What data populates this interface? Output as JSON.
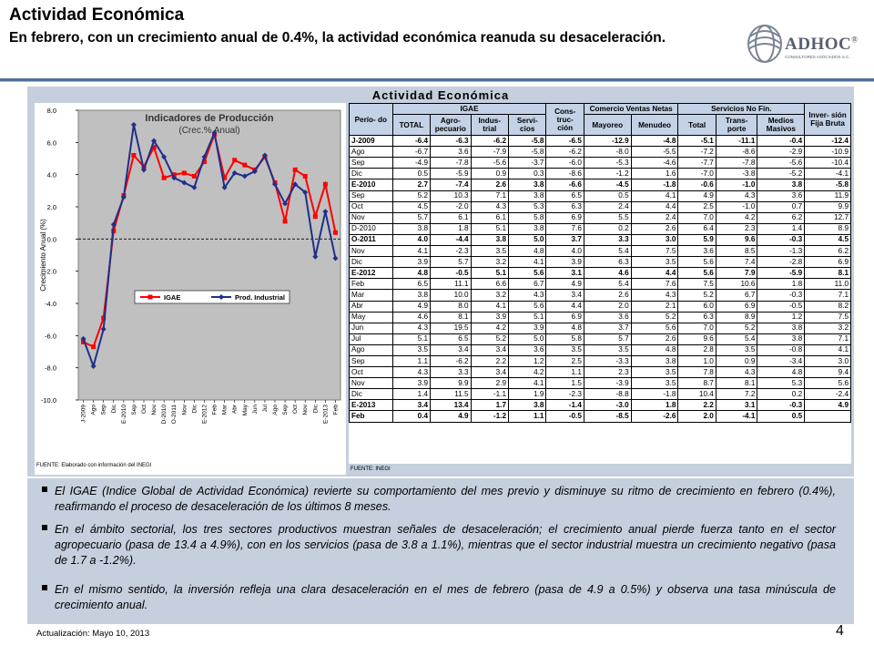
{
  "header": {
    "title": "Actividad Económica",
    "subtitle": "En febrero, con un crecimiento anual de 0.4%, la actividad económica reanuda su desaceleración."
  },
  "logo": {
    "word": "ADHOC",
    "registered": "®",
    "tagline": "CONSULTORES ASOCIADOS S.C."
  },
  "panel": {
    "title": "Actividad Económica"
  },
  "chart_data": {
    "type": "line",
    "title": "Indicadores de Producción",
    "subtitle": "(Crec.% Anual)",
    "ylabel": "Crecimiento Anual (%)",
    "ylim": [
      -10,
      8
    ],
    "yticks": [
      "8.0",
      "6.0",
      "4.0",
      "2.0",
      "0.0",
      "-2.0",
      "-4.0",
      "-6.0",
      "-8.0",
      "-10.0"
    ],
    "categories": [
      "J-2009",
      "Ago",
      "Sep",
      "Dic",
      "E-2010",
      "Sep",
      "Oct",
      "Nov",
      "D-2010",
      "O-2011",
      "Nov",
      "Dic",
      "E-2012",
      "Feb",
      "Mar",
      "Abr",
      "May",
      "Jun",
      "Jul",
      "Ago",
      "Sep",
      "Oct",
      "Nov",
      "Dic",
      "E-2013",
      "Feb"
    ],
    "series": [
      {
        "name": "IGAE",
        "color": "#ff0000",
        "marker": "square",
        "values": [
          -6.4,
          -6.7,
          -4.9,
          0.5,
          2.7,
          5.2,
          4.5,
          5.7,
          3.8,
          4.0,
          4.1,
          3.9,
          4.8,
          6.5,
          3.8,
          4.9,
          4.6,
          4.3,
          5.1,
          3.5,
          1.1,
          4.3,
          3.9,
          1.4,
          3.4,
          0.4
        ]
      },
      {
        "name": "Prod. Industrial",
        "color": "#1f2f8a",
        "marker": "diamond",
        "values": [
          -6.2,
          -7.9,
          -5.6,
          0.9,
          2.6,
          7.1,
          4.3,
          6.1,
          5.1,
          3.8,
          3.5,
          3.2,
          5.1,
          6.6,
          3.2,
          4.1,
          3.9,
          4.2,
          5.2,
          3.4,
          2.2,
          3.4,
          2.9,
          -1.1,
          1.7,
          -1.2
        ]
      }
    ],
    "legend": "bottom-center",
    "grid": false,
    "source": "FUENTE: Elaborado con información del INEGI"
  },
  "table": {
    "groups": {
      "periodo": "Perío- do",
      "igae": "IGAE",
      "construccion": "Cons- truc- ción",
      "comercio": "Comercio Ventas Netas",
      "servicios": "Servicios No Fin.",
      "inversion": "Inver- sión Fija Bruta"
    },
    "subheaders": [
      "TOTAL",
      "Agro- pecuario",
      "Indus- trial",
      "Servi- cios",
      "Mayoreo",
      "Menudeo",
      "Total",
      "Trans- porte",
      "Medios Masivos"
    ],
    "rows": [
      {
        "p": "J-2009",
        "v": [
          "-6.4",
          "-6.3",
          "-6.2",
          "-5.8",
          "-6.5",
          "-12.9",
          "-4.8",
          "-5.1",
          "-11.1",
          "-0.4",
          "-12.4"
        ],
        "b": true
      },
      {
        "p": "Ago",
        "v": [
          "-6.7",
          "3.6",
          "-7.9",
          "-5.8",
          "-6.2",
          "-8.0",
          "-5.5",
          "-7.2",
          "-8.6",
          "-2.9",
          "-10.9"
        ]
      },
      {
        "p": "Sep",
        "v": [
          "-4.9",
          "-7.8",
          "-5.6",
          "-3.7",
          "-6.0",
          "-5.3",
          "-4.6",
          "-7.7",
          "-7.8",
          "-5.6",
          "-10.4"
        ]
      },
      {
        "p": "Dic",
        "v": [
          "0.5",
          "-5.9",
          "0.9",
          "0.3",
          "-8.6",
          "-1.2",
          "1.6",
          "-7.0",
          "-3.8",
          "-5.2",
          "-4.1"
        ]
      },
      {
        "p": "E-2010",
        "v": [
          "2.7",
          "-7.4",
          "2.6",
          "3.8",
          "-6.6",
          "-4.5",
          "-1.8",
          "-0.6",
          "-1.0",
          "3.8",
          "-5.8"
        ],
        "b": true
      },
      {
        "p": "Sep",
        "v": [
          "5.2",
          "10.3",
          "7.1",
          "3.8",
          "6.5",
          "0.5",
          "4.1",
          "4.9",
          "4.3",
          "3.6",
          "11.9"
        ]
      },
      {
        "p": "Oct",
        "v": [
          "4.5",
          "-2.0",
          "4.3",
          "5.3",
          "6.3",
          "2.4",
          "4.4",
          "2.5",
          "-1.0",
          "0.7",
          "9.9"
        ]
      },
      {
        "p": "Nov",
        "v": [
          "5.7",
          "6.1",
          "6.1",
          "5.8",
          "6.9",
          "5.5",
          "2.4",
          "7.0",
          "4.2",
          "6.2",
          "12.7"
        ]
      },
      {
        "p": "D-2010",
        "v": [
          "3.8",
          "1.8",
          "5.1",
          "3.8",
          "7.6",
          "0.2",
          "2.6",
          "6.4",
          "2.3",
          "1.4",
          "8.9"
        ]
      },
      {
        "p": "O-2011",
        "v": [
          "4.0",
          "-4.4",
          "3.8",
          "5.0",
          "3.7",
          "3.3",
          "3.0",
          "5.9",
          "9.6",
          "-0.3",
          "4.5"
        ],
        "b": true
      },
      {
        "p": "Nov",
        "v": [
          "4.1",
          "-2.3",
          "3.5",
          "4.8",
          "4.0",
          "5.4",
          "7.5",
          "3.6",
          "8.5",
          "-1.3",
          "6.2"
        ]
      },
      {
        "p": "Dic",
        "v": [
          "3.9",
          "5.7",
          "3.2",
          "4.1",
          "3.9",
          "6.3",
          "3.5",
          "5.6",
          "7.4",
          "-2.8",
          "6.9"
        ]
      },
      {
        "p": "E-2012",
        "v": [
          "4.8",
          "-0.5",
          "5.1",
          "5.6",
          "3.1",
          "4.6",
          "4.4",
          "5.6",
          "7.9",
          "-5.9",
          "8.1"
        ],
        "b": true
      },
      {
        "p": "Feb",
        "v": [
          "6.5",
          "11.1",
          "6.6",
          "6.7",
          "4.9",
          "5.4",
          "7.6",
          "7.5",
          "10.6",
          "1.8",
          "11.0"
        ]
      },
      {
        "p": "Mar",
        "v": [
          "3.8",
          "10.0",
          "3.2",
          "4.3",
          "3.4",
          "2.6",
          "4.3",
          "5.2",
          "6.7",
          "-0.3",
          "7.1"
        ]
      },
      {
        "p": "Abr",
        "v": [
          "4.9",
          "8.0",
          "4.1",
          "5.6",
          "4.4",
          "2.0",
          "2.1",
          "6.0",
          "6.9",
          "-0.5",
          "8.2"
        ]
      },
      {
        "p": "May",
        "v": [
          "4.6",
          "8.1",
          "3.9",
          "5.1",
          "6.9",
          "3.6",
          "5.2",
          "6.3",
          "8.9",
          "1.2",
          "7.5"
        ]
      },
      {
        "p": "Jun",
        "v": [
          "4.3",
          "19.5",
          "4.2",
          "3.9",
          "4.8",
          "3.7",
          "5.6",
          "7.0",
          "5.2",
          "3.8",
          "3.2"
        ]
      },
      {
        "p": "Jul",
        "v": [
          "5.1",
          "6.5",
          "5.2",
          "5.0",
          "5.8",
          "5.7",
          "2.6",
          "9.6",
          "5.4",
          "3.8",
          "7.1"
        ]
      },
      {
        "p": "Ago",
        "v": [
          "3.5",
          "3.4",
          "3.4",
          "3.6",
          "3.5",
          "3.5",
          "4.8",
          "2.8",
          "3.5",
          "-0.8",
          "4.1"
        ]
      },
      {
        "p": "Sep",
        "v": [
          "1.1",
          "-6.2",
          "2.2",
          "1.2",
          "2.5",
          "-3.3",
          "3.8",
          "1.0",
          "0.9",
          "-3.4",
          "3.0"
        ]
      },
      {
        "p": "Oct",
        "v": [
          "4.3",
          "3.3",
          "3.4",
          "4.2",
          "1.1",
          "2.3",
          "3.5",
          "7.8",
          "4.3",
          "4.8",
          "9.4"
        ]
      },
      {
        "p": "Nov",
        "v": [
          "3.9",
          "9.9",
          "2.9",
          "4.1",
          "1.5",
          "-3.9",
          "3.5",
          "8.7",
          "8.1",
          "5.3",
          "5.6"
        ]
      },
      {
        "p": "Dic",
        "v": [
          "1.4",
          "11.5",
          "-1.1",
          "1.9",
          "-2.3",
          "-8.8",
          "-1.8",
          "10.4",
          "7.2",
          "0.2",
          "-2.4"
        ]
      },
      {
        "p": "E-2013",
        "v": [
          "3.4",
          "13.4",
          "1.7",
          "3.8",
          "-1.4",
          "-3.0",
          "1.8",
          "2.2",
          "3.1",
          "-0.3",
          "4.9"
        ],
        "b": true
      },
      {
        "p": "Feb",
        "v": [
          "0.4",
          "4.9",
          "-1.2",
          "1.1",
          "-0.5",
          "-8.5",
          "-2.6",
          "2.0",
          "-4.1",
          "0.5",
          ""
        ],
        "b": true
      }
    ],
    "source": "FUENTE: INEGI"
  },
  "bullets": [
    "El IGAE (Indice Global de Actividad Económica) revierte su comportamiento del mes previo y disminuye su ritmo de crecimiento en febrero (0.4%), reafirmando el proceso de desaceleración de los últimos 8 meses.",
    "En el ámbito sectorial, los tres sectores productivos muestran señales de desaceleración; el crecimiento anual pierde fuerza tanto en el sector agropecuario (pasa de 13.4 a 4.9%), con en los servicios (pasa de 3.8 a 1.1%), mientras que el sector industrial muestra un crecimiento negativo (pasa de 1.7 a -1.2%).",
    "En el mismo sentido, la inversión refleja una clara desaceleración en el mes de febrero (pasa de 4.9 a 0.5%) y observa una tasa minúscula de crecimiento anual."
  ],
  "footer": {
    "updated": "Actualización:  Mayo 10, 2013",
    "page": "4"
  },
  "colors": {
    "accent": "#4f6e9d",
    "panel": "#c5cfdd",
    "header_cell": "#c3d2e6",
    "igae": "#ff0000",
    "industrial": "#1f2f8a"
  }
}
